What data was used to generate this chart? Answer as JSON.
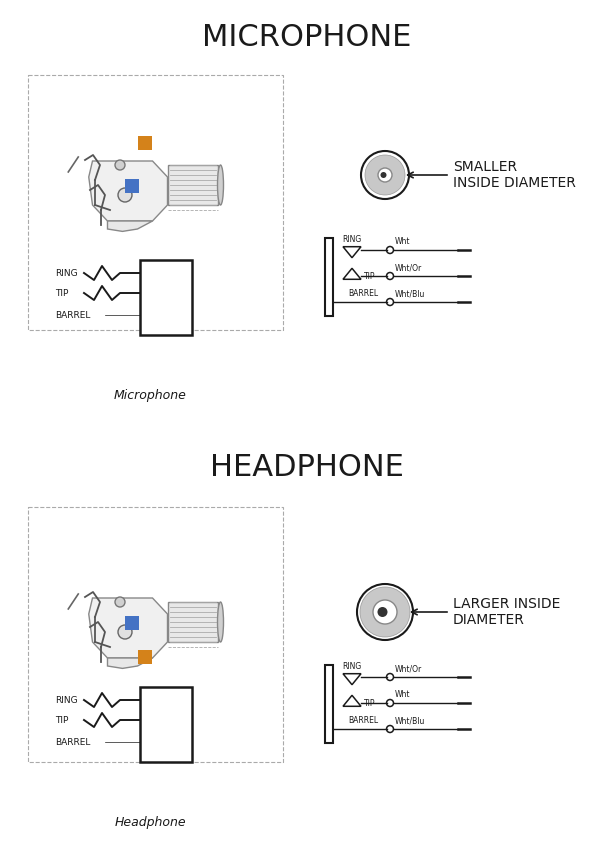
{
  "title_mic": "MICROPHONE",
  "title_hp": "HEADPHONE",
  "label_mic": "Microphone",
  "label_hp": "Headphone",
  "mic_smaller_text_1": "SMALLER",
  "mic_smaller_text_2": "INSIDE DIAMETER",
  "hp_larger_text_1": "LARGER INSIDE",
  "hp_larger_text_2": "DIAMETER",
  "mic_wiring": [
    {
      "label": "RING",
      "wire": "Wht"
    },
    {
      "label": "TIP",
      "wire": "Wht/Or"
    },
    {
      "label": "BARREL",
      "wire": "Wht/Blu"
    }
  ],
  "hp_wiring": [
    {
      "label": "RING",
      "wire": "Wht/Or"
    },
    {
      "label": "TIP",
      "wire": "Wht"
    },
    {
      "label": "BARREL",
      "wire": "Wht/Blu"
    }
  ],
  "bg_color": "#ffffff",
  "line_color": "#1a1a1a",
  "orange_color": "#d4821a",
  "blue_color": "#4472c4",
  "gray_light": "#c8c8c8",
  "gray_mid": "#a0a0a0",
  "dashed_color": "#aaaaaa",
  "title_fontsize": 22,
  "caption_fontsize": 9,
  "label_fontsize": 6,
  "wire_label_fontsize": 6.5
}
